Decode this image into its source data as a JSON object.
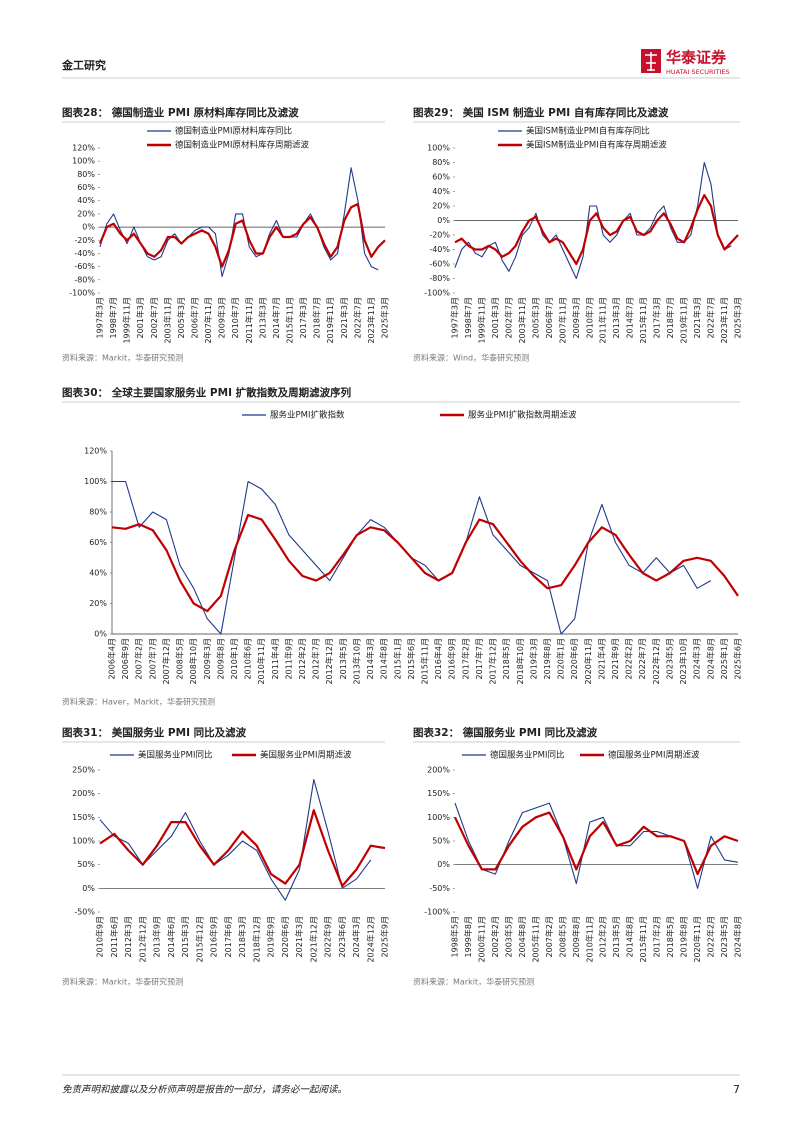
{
  "header": {
    "section": "金工研究",
    "logo_cn": "华泰证券",
    "logo_en": "HUATAI SECURITIES"
  },
  "footer": {
    "disclaimer": "免责声明和披露以及分析师声明是报告的一部分，请务必一起阅读。",
    "page": 7
  },
  "chart_data": [
    {
      "type": "line",
      "title": "图表28：  德国制造业 PMI 原材料库存同比及滤波",
      "source": "资料来源：Markit，华泰研究预测",
      "categories": [
        "1997年3月",
        null,
        "1998年7月",
        null,
        "1999年11月",
        null,
        "2001年3月",
        null,
        "2002年7月",
        null,
        "2003年11月",
        null,
        "2005年3月",
        null,
        "2006年7月",
        null,
        "2007年11月",
        null,
        "2009年3月",
        null,
        "2010年7月",
        null,
        "2011年11月",
        null,
        "2013年3月",
        null,
        "2014年7月",
        null,
        "2015年11月",
        null,
        "2017年3月",
        null,
        "2018年7月",
        null,
        "2019年11月",
        null,
        "2021年3月",
        null,
        "2022年7月",
        null,
        "2023年11月",
        null,
        "2025年3月"
      ],
      "series": [
        {
          "name": "德国制造业PMI原材料库存同比",
          "color": "#1f3a8a",
          "values": [
            -30,
            5,
            20,
            -5,
            -25,
            0,
            -25,
            -45,
            -50,
            -45,
            -20,
            -10,
            -25,
            -15,
            -5,
            0,
            0,
            -10,
            -75,
            -40,
            20,
            20,
            -30,
            -45,
            -40,
            -10,
            10,
            -15,
            -15,
            -15,
            5,
            20,
            0,
            -30,
            -50,
            -40,
            20,
            90,
            40,
            -40,
            -60,
            -65,
            null
          ]
        },
        {
          "name": "德国制造业PMI原材料库存周期滤波",
          "color": "#c00000",
          "values": [
            -25,
            0,
            5,
            -10,
            -20,
            -10,
            -25,
            -40,
            -45,
            -35,
            -15,
            -15,
            -25,
            -15,
            -10,
            -5,
            -10,
            -30,
            -60,
            -35,
            5,
            10,
            -20,
            -40,
            -40,
            -15,
            0,
            -15,
            -15,
            -10,
            5,
            15,
            0,
            -25,
            -45,
            -30,
            10,
            30,
            35,
            -20,
            -45,
            -30,
            -20
          ]
        }
      ],
      "ylim": [
        -100,
        120
      ],
      "yticks": [
        {
          "value": -100,
          "label": "-100%"
        },
        {
          "value": -80,
          "label": "-80%"
        },
        {
          "value": -60,
          "label": "-60%"
        },
        {
          "value": -40,
          "label": "-40%"
        },
        {
          "value": -20,
          "label": "-20%"
        },
        {
          "value": 0,
          "label": "0%"
        },
        {
          "value": 20,
          "label": "20%"
        },
        {
          "value": 40,
          "label": "40%"
        },
        {
          "value": 60,
          "label": "60%"
        },
        {
          "value": 80,
          "label": "80%"
        },
        {
          "value": 100,
          "label": "100%"
        },
        {
          "value": 120,
          "label": "120%"
        }
      ]
    },
    {
      "type": "line",
      "title": "图表29：  美国 ISM 制造业 PMI 自有库存同比及滤波",
      "source": "资料来源：Wind，华泰研究预测",
      "categories": [
        "1997年3月",
        null,
        "1998年7月",
        null,
        "1999年11月",
        null,
        "2001年3月",
        null,
        "2002年7月",
        null,
        "2003年11月",
        null,
        "2005年3月",
        null,
        "2006年7月",
        null,
        "2007年11月",
        null,
        "2009年3月",
        null,
        "2010年7月",
        null,
        "2011年11月",
        null,
        "2013年3月",
        null,
        "2014年7月",
        null,
        "2015年11月",
        null,
        "2017年3月",
        null,
        "2018年7月",
        null,
        "2019年11月",
        null,
        "2021年3月",
        null,
        "2022年7月",
        null,
        "2023年11月",
        null,
        "2025年3月"
      ],
      "series": [
        {
          "name": "美国ISM制造业PMI自有库存同比",
          "color": "#1f3a8a",
          "values": [
            -65,
            -40,
            -30,
            -45,
            -50,
            -35,
            -30,
            -55,
            -70,
            -50,
            -20,
            -10,
            10,
            -20,
            -30,
            -20,
            -40,
            -60,
            -80,
            -50,
            20,
            20,
            -20,
            -30,
            -20,
            0,
            10,
            -20,
            -20,
            -10,
            10,
            20,
            -10,
            -30,
            -30,
            -20,
            20,
            80,
            50,
            -20,
            -40,
            -35,
            null
          ]
        },
        {
          "name": "美国ISM制造业PMI自有库存周期滤波",
          "color": "#c00000",
          "values": [
            -30,
            -25,
            -35,
            -40,
            -40,
            -35,
            -40,
            -50,
            -45,
            -35,
            -15,
            0,
            5,
            -15,
            -30,
            -25,
            -30,
            -45,
            -60,
            -40,
            0,
            10,
            -10,
            -20,
            -15,
            0,
            5,
            -15,
            -20,
            -15,
            0,
            10,
            -5,
            -25,
            -30,
            -10,
            15,
            35,
            20,
            -20,
            -40,
            -30,
            -20
          ]
        }
      ],
      "ylim": [
        -100,
        100
      ],
      "yticks": [
        {
          "value": -100,
          "label": "-100%"
        },
        {
          "value": -80,
          "label": "-80%"
        },
        {
          "value": -60,
          "label": "-60%"
        },
        {
          "value": -40,
          "label": "-40%"
        },
        {
          "value": -20,
          "label": "-20%"
        },
        {
          "value": 0,
          "label": "0%"
        },
        {
          "value": 20,
          "label": "20%"
        },
        {
          "value": 40,
          "label": "40%"
        },
        {
          "value": 60,
          "label": "60%"
        },
        {
          "value": 80,
          "label": "80%"
        },
        {
          "value": 100,
          "label": "100%"
        }
      ]
    },
    {
      "type": "line",
      "title": "图表30：  全球主要国家服务业 PMI 扩散指数及周期滤波序列",
      "source": "资料来源：Haver，Markit，华泰研究预测",
      "categories": [
        "2006年4月",
        "2006年9月",
        "2007年2月",
        "2007年7月",
        "2007年12月",
        "2008年5月",
        "2008年10月",
        "2009年3月",
        "2009年8月",
        "2010年1月",
        "2010年6月",
        "2010年11月",
        "2011年4月",
        "2011年9月",
        "2012年2月",
        "2012年7月",
        "2012年12月",
        "2013年5月",
        "2013年10月",
        "2014年3月",
        "2014年8月",
        "2015年1月",
        "2015年6月",
        "2015年11月",
        "2016年4月",
        "2016年9月",
        "2017年2月",
        "2017年7月",
        "2017年12月",
        "2018年5月",
        "2018年10月",
        "2019年3月",
        "2019年8月",
        "2020年1月",
        "2020年6月",
        "2020年11月",
        "2021年4月",
        "2021年9月",
        "2022年2月",
        "2022年7月",
        "2022年12月",
        "2023年5月",
        "2023年10月",
        "2024年3月",
        "2024年8月",
        "2025年1月",
        "2025年6月"
      ],
      "series": [
        {
          "name": "服务业PMI扩散指数",
          "color": "#1f3a8a",
          "values": [
            100,
            100,
            70,
            80,
            75,
            45,
            30,
            10,
            0,
            50,
            100,
            95,
            85,
            65,
            55,
            45,
            35,
            50,
            65,
            75,
            70,
            60,
            50,
            45,
            35,
            40,
            60,
            90,
            65,
            55,
            45,
            40,
            35,
            0,
            10,
            60,
            85,
            60,
            45,
            40,
            50,
            40,
            45,
            30,
            35,
            null,
            null
          ]
        },
        {
          "name": "服务业PMI扩散指数周期滤波",
          "color": "#c00000",
          "values": [
            70,
            69,
            72,
            68,
            55,
            35,
            20,
            15,
            25,
            55,
            78,
            75,
            62,
            48,
            38,
            35,
            40,
            52,
            65,
            70,
            68,
            60,
            50,
            40,
            35,
            40,
            60,
            75,
            72,
            60,
            48,
            38,
            30,
            32,
            45,
            60,
            70,
            65,
            52,
            40,
            35,
            40,
            48,
            50,
            48,
            38,
            25
          ]
        }
      ],
      "ylim": [
        0,
        120
      ],
      "yticks": [
        {
          "value": 0,
          "label": "0%"
        },
        {
          "value": 20,
          "label": "20%"
        },
        {
          "value": 40,
          "label": "40%"
        },
        {
          "value": 60,
          "label": "60%"
        },
        {
          "value": 80,
          "label": "80%"
        },
        {
          "value": 100,
          "label": "100%"
        },
        {
          "value": 120,
          "label": "120%"
        }
      ]
    },
    {
      "type": "line",
      "title": "图表31：  美国服务业 PMI 同比及滤波",
      "source": "资料来源：Markit，华泰研究预测",
      "categories": [
        "2010年9月",
        "2011年6月",
        "2012年3月",
        "2012年12月",
        "2013年9月",
        "2014年6月",
        "2015年3月",
        "2015年12月",
        "2016年9月",
        "2017年6月",
        "2018年3月",
        "2018年12月",
        "2019年9月",
        "2020年6月",
        "2021年3月",
        "2021年12月",
        "2022年9月",
        "2023年6月",
        "2024年3月",
        "2024年12月",
        "2025年9月"
      ],
      "series": [
        {
          "name": "美国服务业PMI同比",
          "color": "#1f3a8a",
          "values": [
            145,
            110,
            95,
            50,
            80,
            110,
            160,
            100,
            50,
            70,
            100,
            80,
            20,
            -25,
            40,
            230,
            120,
            0,
            20,
            60,
            null
          ]
        },
        {
          "name": "美国服务业PMI周期滤波",
          "color": "#c00000",
          "values": [
            95,
            115,
            80,
            50,
            90,
            140,
            140,
            90,
            50,
            80,
            120,
            90,
            30,
            10,
            50,
            165,
            80,
            5,
            40,
            90,
            85
          ]
        }
      ],
      "ylim": [
        -50,
        250
      ],
      "yticks": [
        {
          "value": -50,
          "label": "-50%"
        },
        {
          "value": 0,
          "label": "0%"
        },
        {
          "value": 50,
          "label": "50%"
        },
        {
          "value": 100,
          "label": "100%"
        },
        {
          "value": 150,
          "label": "150%"
        },
        {
          "value": 200,
          "label": "200%"
        },
        {
          "value": 250,
          "label": "250%"
        }
      ]
    },
    {
      "type": "line",
      "title": "图表32：  德国服务业 PMI 同比及滤波",
      "source": "资料来源：Markit，华泰研究预测",
      "categories": [
        "1998年5月",
        "1999年8月",
        "2000年11月",
        "2002年2月",
        "2003年5月",
        "2004年8月",
        "2005年11月",
        "2007年2月",
        "2008年5月",
        "2009年8月",
        "2010年11月",
        "2012年2月",
        "2013年5月",
        "2014年8月",
        "2015年11月",
        "2017年2月",
        "2018年5月",
        "2019年8月",
        "2020年11月",
        "2022年2月",
        "2023年5月",
        "2024年8月"
      ],
      "series": [
        {
          "name": "德国服务业PMI同比",
          "color": "#1f3a8a",
          "values": [
            130,
            50,
            -10,
            -20,
            50,
            110,
            120,
            130,
            60,
            -40,
            90,
            100,
            40,
            40,
            70,
            70,
            60,
            50,
            -50,
            60,
            10,
            5
          ]
        },
        {
          "name": "德国服务业PMI周期滤波",
          "color": "#c00000",
          "values": [
            100,
            40,
            -10,
            -10,
            40,
            80,
            100,
            110,
            60,
            -10,
            60,
            90,
            40,
            50,
            80,
            60,
            60,
            50,
            -20,
            40,
            60,
            50
          ]
        }
      ],
      "ylim": [
        -100,
        200
      ],
      "yticks": [
        {
          "value": -100,
          "label": "-100%"
        },
        {
          "value": -50,
          "label": "-50%"
        },
        {
          "value": 0,
          "label": "0%"
        },
        {
          "value": 50,
          "label": "50%"
        },
        {
          "value": 100,
          "label": "100%"
        },
        {
          "value": 150,
          "label": "150%"
        },
        {
          "value": 200,
          "label": "200%"
        }
      ]
    }
  ]
}
